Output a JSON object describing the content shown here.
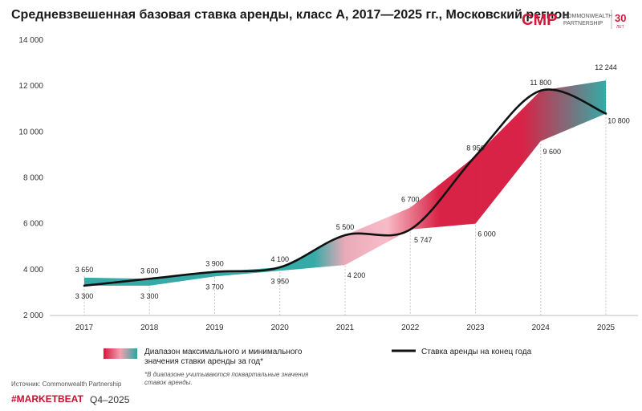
{
  "title": "Средневзвешенная базовая ставка аренды, класс А, 2017—2025 гг., Московский регион",
  "logo": {
    "mark": "CMP",
    "line1": "COMMONWEALTH",
    "line2": "PARTNERSHIP",
    "years": "30",
    "years_label": "ЛЕТ"
  },
  "legend": {
    "range_label": "Диапазон максимального и минимального значения ставки аренды за год*",
    "note": "*В диапазоне учитываются поквартальные значения ставок аренды.",
    "line_label": "Ставка аренды на конец года"
  },
  "footer": {
    "source": "Источник: Commonwealth Partnership",
    "brand": "#MARKETBEAT",
    "period": "Q4–2025"
  },
  "colors": {
    "teal": "#2aa6a2",
    "red": "#d6173c",
    "pink": "#f7b8c4",
    "line": "#111111",
    "brand": "#c8102e"
  },
  "chart_data": {
    "type": "area",
    "x": [
      "2017",
      "2018",
      "2019",
      "2020",
      "2021",
      "2022",
      "2023",
      "2024",
      "2025"
    ],
    "ylim": [
      2000,
      14000
    ],
    "yticks": [
      "2 000",
      "4 000",
      "6 000",
      "8 000",
      "10 000",
      "12 000",
      "14 000"
    ],
    "ytick_values": [
      2000,
      4000,
      6000,
      8000,
      10000,
      12000,
      14000
    ],
    "grid": "vertical dotted",
    "series": [
      {
        "name": "Диапазон максимального и минимального значения ставки аренды за год*",
        "kind": "range",
        "max": [
          3650,
          3600,
          3900,
          4100,
          5500,
          6700,
          8950,
          11800,
          12244
        ],
        "min": [
          3300,
          3300,
          3700,
          3950,
          4200,
          5747,
          6000,
          9600,
          10800
        ],
        "max_labels": [
          "3 650",
          "3 600",
          "3 900",
          "4 100",
          "5 500",
          "6 700",
          "8  950",
          "11 800",
          "12 244"
        ],
        "min_labels": [
          "3 300",
          "3 300",
          "3 700",
          "3 950",
          "4 200",
          "5 747",
          "6 000",
          "9 600",
          "10 800"
        ]
      },
      {
        "name": "Ставка аренды на конец года",
        "kind": "line",
        "values": [
          3300,
          3600,
          3900,
          4100,
          5500,
          5747,
          8950,
          11800,
          10800
        ]
      }
    ]
  }
}
